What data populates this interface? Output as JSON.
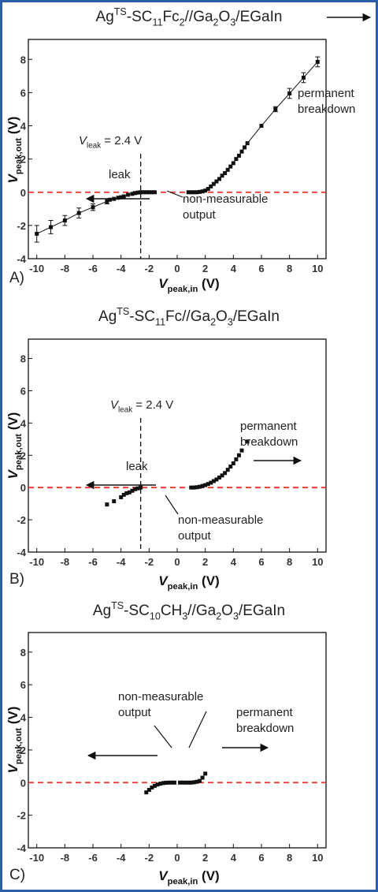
{
  "chart_data": [
    {
      "type": "scatter",
      "panel_label": "A)",
      "title": [
        {
          "text": "Ag"
        },
        {
          "text": "TS",
          "shift": "sup"
        },
        {
          "text": "-SC"
        },
        {
          "text": "11",
          "shift": "sub"
        },
        {
          "text": "Fc"
        },
        {
          "text": "2",
          "shift": "sub"
        },
        {
          "text": "//Ga"
        },
        {
          "text": "2",
          "shift": "sub"
        },
        {
          "text": "O"
        },
        {
          "text": "3",
          "shift": "sub"
        },
        {
          "text": "/EGaIn"
        }
      ],
      "x_label": [
        {
          "text": "V",
          "italic": true
        },
        {
          "text": "peak,in",
          "shift": "sub"
        },
        {
          "text": " (V)"
        }
      ],
      "y_label": [
        {
          "text": "V",
          "italic": true
        },
        {
          "text": "peak,out",
          "shift": "sub"
        },
        {
          "text": " (V)"
        }
      ],
      "xlim": [
        -10.6,
        10.6
      ],
      "ylim": [
        -4,
        9.2
      ],
      "xticks": [
        -10,
        -8,
        -6,
        -4,
        -2,
        0,
        2,
        4,
        6,
        8,
        10
      ],
      "yticks": [
        -4,
        -2,
        0,
        2,
        4,
        6,
        8
      ],
      "series": [
        {
          "color": "#111111",
          "line": true,
          "x": [
            -10,
            -9,
            -8,
            -7,
            -6,
            -5,
            -4.8,
            -4.5,
            -4.2,
            -4,
            -3.8,
            -3.5,
            -3.2,
            -3,
            -2.8,
            -2.6,
            -2.4,
            -2.2,
            -2,
            -1.8,
            -1.6
          ],
          "values": [
            -2.5,
            -2.1,
            -1.7,
            -1.25,
            -0.9,
            -0.55,
            -0.45,
            -0.4,
            -0.33,
            -0.3,
            -0.25,
            -0.15,
            -0.1,
            -0.05,
            -0.02,
            0,
            0,
            0,
            0,
            0,
            0
          ],
          "errors": [
            0.5,
            0.4,
            0.3,
            0.3,
            0.2,
            0.15,
            null,
            null,
            null,
            null,
            null,
            null,
            null,
            null,
            null,
            null,
            null,
            null,
            null,
            null,
            null
          ]
        },
        {
          "color": "#111111",
          "line": true,
          "x": [
            0.8,
            1,
            1.2,
            1.4,
            1.6,
            1.8,
            2,
            2.2,
            2.4,
            2.6,
            2.8,
            3,
            3.2,
            3.4,
            3.6,
            3.8,
            4,
            4.2,
            4.4,
            4.6,
            4.8,
            5,
            6,
            7,
            8,
            9,
            10
          ],
          "values": [
            0,
            0,
            0,
            0,
            0.02,
            0.05,
            0.1,
            0.2,
            0.35,
            0.5,
            0.65,
            0.8,
            1,
            1.15,
            1.35,
            1.55,
            1.75,
            2,
            2.2,
            2.45,
            2.7,
            2.95,
            4,
            5,
            5.95,
            6.9,
            7.85
          ],
          "errors": [
            null,
            null,
            null,
            null,
            null,
            null,
            null,
            null,
            null,
            null,
            null,
            null,
            null,
            null,
            null,
            null,
            null,
            null,
            null,
            null,
            null,
            null,
            null,
            0.15,
            0.3,
            0.3,
            0.3
          ]
        }
      ],
      "reference_line": {
        "value": 0,
        "color": "#e8302a"
      },
      "vline": {
        "value": -2.6,
        "label": [
          {
            "text": "V",
            "italic": true
          },
          {
            "text": "leak",
            "shift": "sub"
          },
          {
            "text": " = 2.4 V"
          }
        ]
      },
      "annotations": [
        {
          "lines": [
            "permanent",
            "breakdown"
          ]
        },
        {
          "lines": [
            "leak"
          ]
        },
        {
          "lines": [
            "non-measurable",
            "output"
          ]
        }
      ]
    },
    {
      "type": "scatter",
      "panel_label": "B)",
      "title": [
        {
          "text": "Ag"
        },
        {
          "text": "TS",
          "shift": "sup"
        },
        {
          "text": "-SC"
        },
        {
          "text": "11",
          "shift": "sub"
        },
        {
          "text": "Fc//Ga"
        },
        {
          "text": "2",
          "shift": "sub"
        },
        {
          "text": "O"
        },
        {
          "text": "3",
          "shift": "sub"
        },
        {
          "text": "/EGaIn"
        }
      ],
      "x_label": [
        {
          "text": "V",
          "italic": true
        },
        {
          "text": "peak,in",
          "shift": "sub"
        },
        {
          "text": " (V)"
        }
      ],
      "y_label": [
        {
          "text": "V",
          "italic": true
        },
        {
          "text": "peak,out",
          "shift": "sub"
        },
        {
          "text": " (V)"
        }
      ],
      "xlim": [
        -10.6,
        10.6
      ],
      "ylim": [
        -4,
        9.2
      ],
      "xticks": [
        -10,
        -8,
        -6,
        -4,
        -2,
        0,
        2,
        4,
        6,
        8,
        10
      ],
      "yticks": [
        -4,
        -2,
        0,
        2,
        4,
        6,
        8
      ],
      "series": [
        {
          "color": "#111111",
          "line": false,
          "x": [
            -5,
            -4.5,
            -4,
            -3.8,
            -3.6,
            -3.4,
            -3.2,
            -3,
            -2.8,
            -2.6
          ],
          "values": [
            -1.05,
            -0.85,
            -0.6,
            -0.45,
            -0.35,
            -0.3,
            -0.2,
            -0.1,
            -0.05,
            0
          ]
        },
        {
          "color": "#111111",
          "line": false,
          "x": [
            1,
            1.2,
            1.4,
            1.6,
            1.8,
            2,
            2.2,
            2.4,
            2.6,
            2.8,
            3,
            3.2,
            3.4,
            3.6,
            3.8,
            4,
            4.2,
            4.4,
            4.6,
            5
          ],
          "values": [
            0,
            0,
            0.02,
            0.05,
            0.1,
            0.15,
            0.22,
            0.3,
            0.4,
            0.5,
            0.62,
            0.75,
            0.9,
            1.1,
            1.3,
            1.5,
            1.75,
            2,
            2.3,
            2.85
          ]
        }
      ],
      "reference_line": {
        "value": 0,
        "color": "#e8302a"
      },
      "vline": {
        "value": -2.6,
        "label": [
          {
            "text": "V",
            "italic": true
          },
          {
            "text": "leak",
            "shift": "sub"
          },
          {
            "text": " = 2.4 V"
          }
        ]
      },
      "annotations": [
        {
          "lines": [
            "permanent",
            "breakdown"
          ]
        },
        {
          "lines": [
            "leak"
          ]
        },
        {
          "lines": [
            "non-measurable",
            "output"
          ]
        }
      ]
    },
    {
      "type": "scatter",
      "panel_label": "C)",
      "title": [
        {
          "text": "Ag"
        },
        {
          "text": "TS",
          "shift": "sup"
        },
        {
          "text": "-SC"
        },
        {
          "text": "10",
          "shift": "sub"
        },
        {
          "text": "CH"
        },
        {
          "text": "3",
          "shift": "sub"
        },
        {
          "text": "//Ga"
        },
        {
          "text": "2",
          "shift": "sub"
        },
        {
          "text": "O"
        },
        {
          "text": "3",
          "shift": "sub"
        },
        {
          "text": "/EGaIn"
        }
      ],
      "x_label": [
        {
          "text": "V",
          "italic": true
        },
        {
          "text": "peak,in",
          "shift": "sub"
        },
        {
          "text": " (V)"
        }
      ],
      "y_label": [
        {
          "text": "V",
          "italic": true
        },
        {
          "text": "peak,out",
          "shift": "sub"
        },
        {
          "text": " (V)"
        }
      ],
      "xlim": [
        -10.6,
        10.6
      ],
      "ylim": [
        -4,
        9.2
      ],
      "xticks": [
        -10,
        -8,
        -6,
        -4,
        -2,
        0,
        2,
        4,
        6,
        8,
        10
      ],
      "yticks": [
        -4,
        -2,
        0,
        2,
        4,
        6,
        8
      ],
      "series": [
        {
          "color": "#111111",
          "line": false,
          "x": [
            -2.2,
            -2,
            -1.8,
            -1.6,
            -1.4,
            -1.2,
            -1,
            -0.8,
            -0.6,
            -0.4,
            -0.2
          ],
          "values": [
            -0.6,
            -0.45,
            -0.3,
            -0.2,
            -0.12,
            -0.07,
            -0.03,
            -0.01,
            0,
            0,
            0
          ]
        },
        {
          "color": "#111111",
          "line": false,
          "x": [
            0.2,
            0.4,
            0.6,
            0.8,
            1,
            1.2,
            1.4,
            1.6,
            1.8,
            2
          ],
          "values": [
            0,
            0,
            0,
            0,
            0,
            0.02,
            0.05,
            0.1,
            0.3,
            0.55
          ]
        }
      ],
      "reference_line": {
        "value": 0,
        "color": "#e8302a"
      },
      "annotations": [
        {
          "lines": [
            "non-measurable",
            "output"
          ]
        },
        {
          "lines": [
            "permanent",
            "breakdown"
          ]
        }
      ]
    }
  ]
}
